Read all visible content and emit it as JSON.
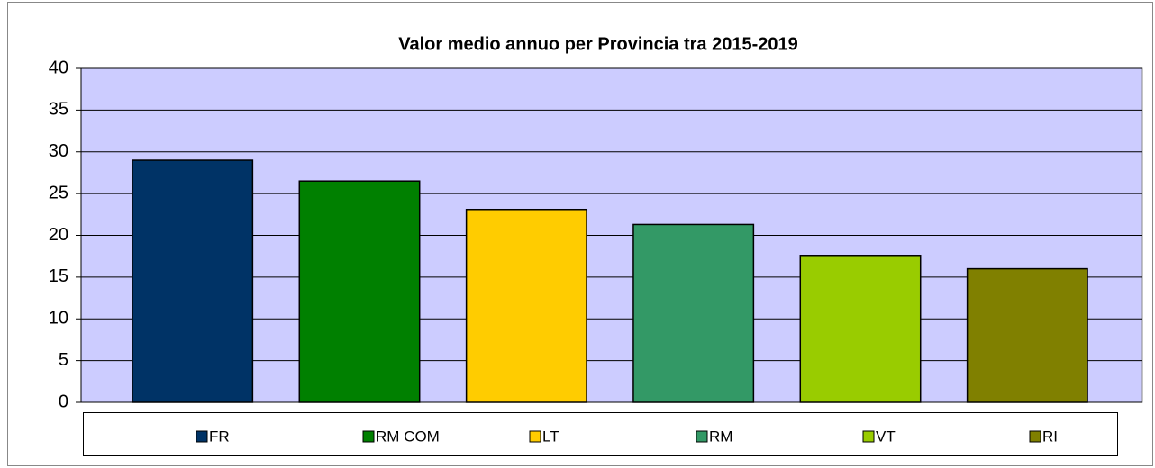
{
  "chart_data": {
    "type": "bar",
    "title": "Valor medio annuo per Provincia tra 2015-2019",
    "categories": [
      "FR",
      "RM COM",
      "LT",
      "RM",
      "VT",
      "RI"
    ],
    "values": [
      29.0,
      26.5,
      23.1,
      21.3,
      17.6,
      16.0
    ],
    "colors": [
      "#003366",
      "#008000",
      "#ffcc00",
      "#339966",
      "#99cc00",
      "#808000"
    ],
    "ylim": [
      0,
      40
    ],
    "yticks": [
      0,
      5,
      10,
      15,
      20,
      25,
      30,
      35,
      40
    ],
    "grid": true,
    "legend": "bottom",
    "plot_background": "#ccccff"
  }
}
